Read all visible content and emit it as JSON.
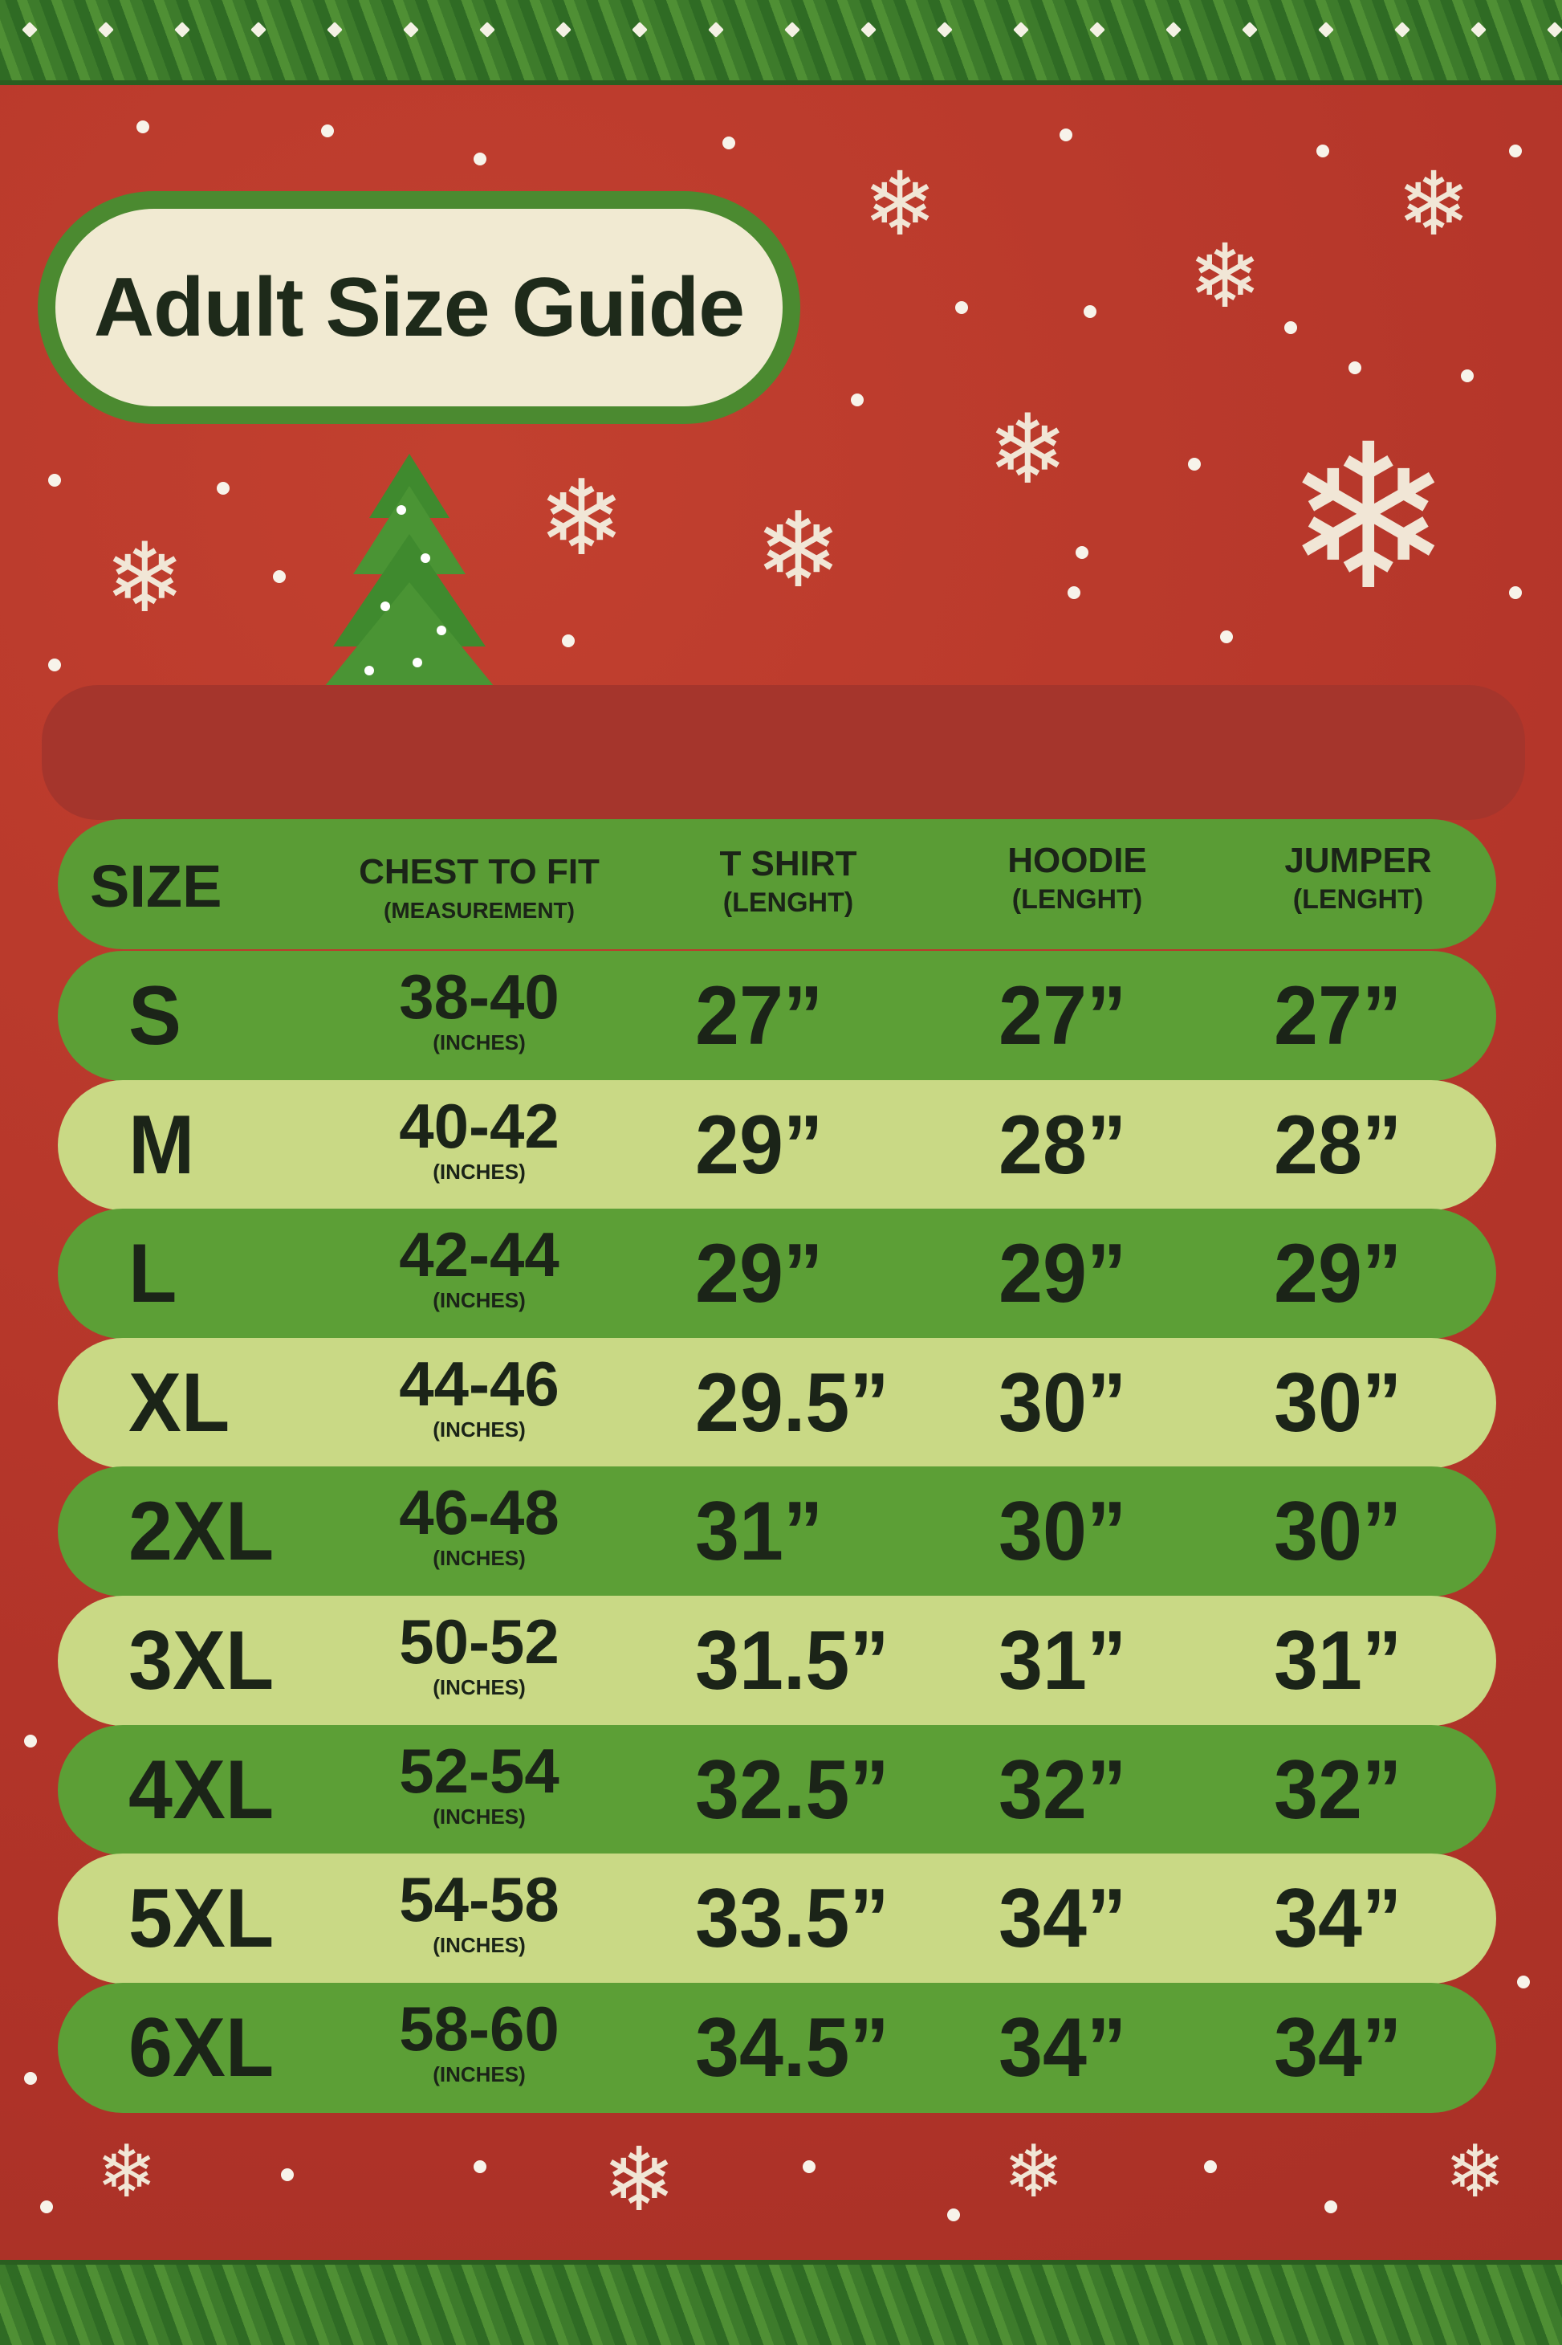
{
  "title": "Adult Size Guide",
  "colors": {
    "background_red": "#b5372d",
    "banner_red": "#a5352c",
    "row_dark_green": "#5c9f36",
    "row_light_green": "#c9d985",
    "title_cream": "#f1ead2",
    "text": "#1b2418"
  },
  "icons": [
    "snowflake-icon",
    "christmas-tree-icon",
    "garland"
  ],
  "table": {
    "headers": [
      {
        "line1": "SIZE",
        "line2": ""
      },
      {
        "line1": "CHEST TO FIT",
        "line2": "(MEASUREMENT)"
      },
      {
        "line1": "T SHIRT",
        "line2": "(LENGHT)"
      },
      {
        "line1": "HOODIE",
        "line2": "(LENGHT)"
      },
      {
        "line1": "JUMPER",
        "line2": "(LENGHT)"
      }
    ],
    "rows": [
      {
        "size": "S",
        "chest": "38-40",
        "unit": "(INCHES)",
        "tshirt": "27”",
        "hoodie": "27”",
        "jumper": "27”"
      },
      {
        "size": "M",
        "chest": "40-42",
        "unit": "(INCHES)",
        "tshirt": "29”",
        "hoodie": "28”",
        "jumper": "28”"
      },
      {
        "size": "L",
        "chest": "42-44",
        "unit": "(INCHES)",
        "tshirt": "29”",
        "hoodie": "29”",
        "jumper": "29”"
      },
      {
        "size": "XL",
        "chest": "44-46",
        "unit": "(INCHES)",
        "tshirt": "29.5”",
        "hoodie": "30”",
        "jumper": "30”"
      },
      {
        "size": "2XL",
        "chest": "46-48",
        "unit": "(INCHES)",
        "tshirt": "31”",
        "hoodie": "30”",
        "jumper": "30”"
      },
      {
        "size": "3XL",
        "chest": "50-52",
        "unit": "(INCHES)",
        "tshirt": "31.5”",
        "hoodie": "31”",
        "jumper": "31”"
      },
      {
        "size": "4XL",
        "chest": "52-54",
        "unit": "(INCHES)",
        "tshirt": "32.5”",
        "hoodie": "32”",
        "jumper": "32”"
      },
      {
        "size": "5XL",
        "chest": "54-58",
        "unit": "(INCHES)",
        "tshirt": "33.5”",
        "hoodie": "34”",
        "jumper": "34”"
      },
      {
        "size": "6XL",
        "chest": "58-60",
        "unit": "(INCHES)",
        "tshirt": "34.5”",
        "hoodie": "34”",
        "jumper": "34”"
      }
    ]
  }
}
